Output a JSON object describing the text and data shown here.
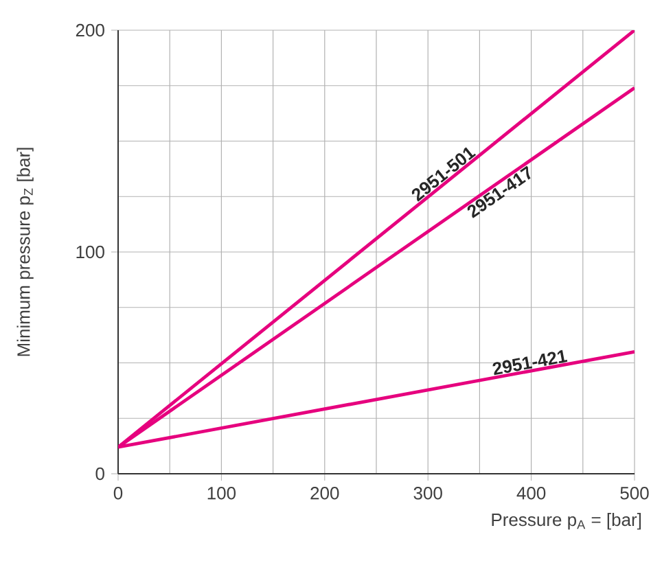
{
  "chart_data": {
    "type": "line",
    "xlabel": "Pressure p$_{A}$ = [bar]",
    "ylabel": "Minimum pressure p$_{Z}$ [bar]",
    "xlim": [
      0,
      500
    ],
    "ylim": [
      0,
      200
    ],
    "xticks": [
      0,
      100,
      200,
      300,
      400,
      500
    ],
    "yticks": [
      0,
      100,
      200
    ],
    "grid": true,
    "legend": false,
    "marker": "none",
    "line_style": "solid",
    "x": [
      0,
      500
    ],
    "series": [
      {
        "name": "2951-501",
        "color": "#e6007e",
        "values": [
          12,
          200
        ]
      },
      {
        "name": "2951-417",
        "color": "#e6007e",
        "values": [
          12,
          174
        ]
      },
      {
        "name": "2951-421",
        "color": "#e6007e",
        "values": [
          12,
          55
        ]
      }
    ]
  }
}
